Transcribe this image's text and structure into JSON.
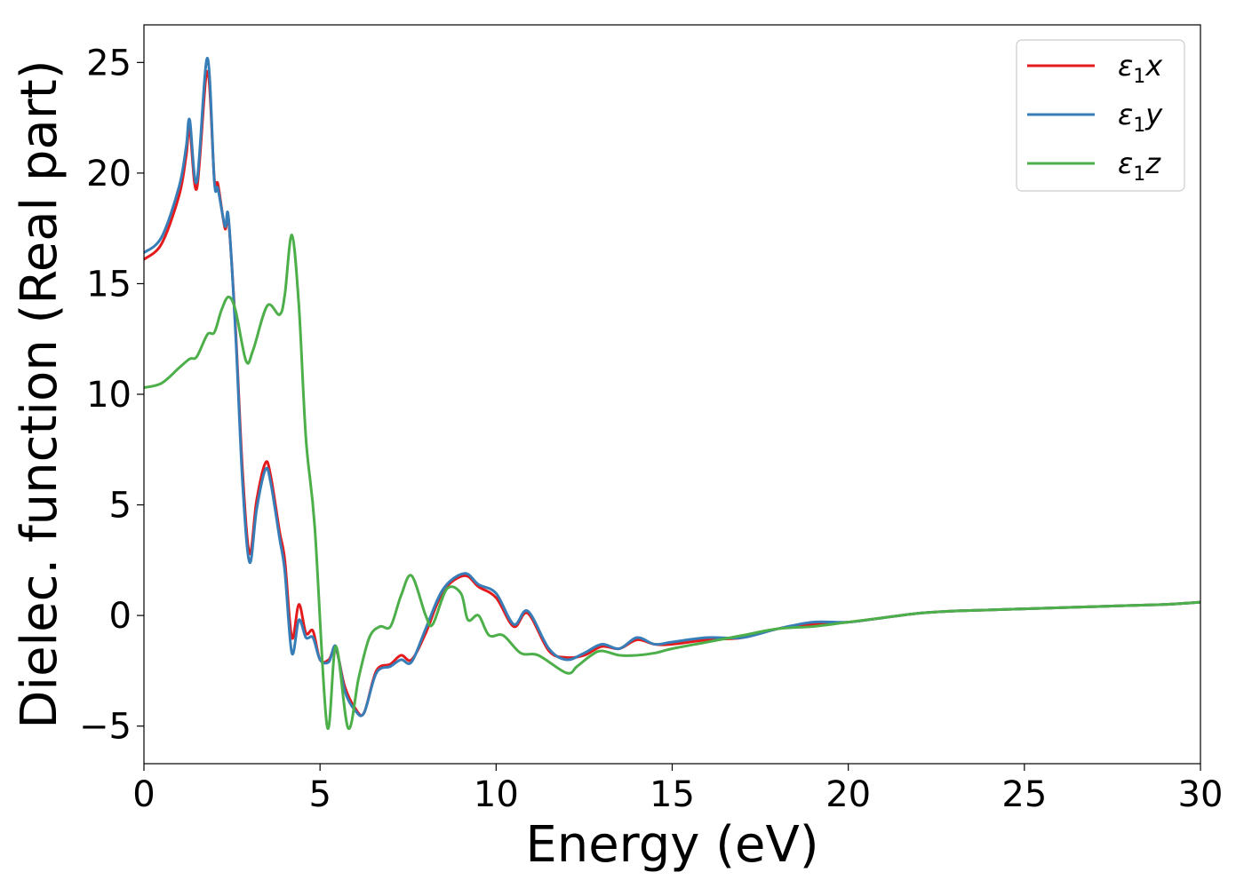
{
  "chart_data": {
    "type": "line",
    "title": "",
    "xlabel": "Energy (eV)",
    "ylabel": "Dielec. function (Real part)",
    "xlim": [
      0,
      30
    ],
    "ylim": [
      -6.7,
      26.7
    ],
    "xticks": [
      0,
      5,
      10,
      15,
      20,
      25,
      30
    ],
    "xtick_labels": [
      "0",
      "5",
      "10",
      "15",
      "20",
      "25",
      "30"
    ],
    "yticks": [
      -5,
      0,
      5,
      10,
      15,
      20,
      25
    ],
    "ytick_labels": [
      "−5",
      "0",
      "5",
      "10",
      "15",
      "20",
      "25"
    ],
    "grid": false,
    "legend_position": "top-right",
    "series": [
      {
        "name": "ε1x",
        "legend_symbol": "ε",
        "legend_sub": "1",
        "legend_var": "x",
        "color": "#e41a1c",
        "x": [
          0,
          0.5,
          1.0,
          1.2,
          1.3,
          1.5,
          1.8,
          2.0,
          2.1,
          2.3,
          2.4,
          2.6,
          2.8,
          3.0,
          3.2,
          3.45,
          3.6,
          3.85,
          4.0,
          4.2,
          4.4,
          4.6,
          4.8,
          5.0,
          5.25,
          5.45,
          5.7,
          6.0,
          6.25,
          6.6,
          7.0,
          7.3,
          7.6,
          8.0,
          8.5,
          9.1,
          9.5,
          10.0,
          10.5,
          10.9,
          11.5,
          12.0,
          12.5,
          13.0,
          13.5,
          14.0,
          14.5,
          15.0,
          16.0,
          17.0,
          18.0,
          19.0,
          20.0,
          21.0,
          22.0,
          23.0,
          24.0,
          25.0,
          26.0,
          27.0,
          28.0,
          29.0,
          30.0
        ],
        "y": [
          16.1,
          16.8,
          19.0,
          20.8,
          22.0,
          19.3,
          24.6,
          19.7,
          19.5,
          17.5,
          17.9,
          13.0,
          6.5,
          2.8,
          5.2,
          6.9,
          6.3,
          3.8,
          2.5,
          -1.0,
          0.5,
          -0.8,
          -0.7,
          -2.0,
          -2.0,
          -1.5,
          -3.2,
          -4.2,
          -4.4,
          -2.5,
          -2.2,
          -1.8,
          -2.0,
          -0.8,
          1.1,
          1.8,
          1.3,
          0.8,
          -0.5,
          0.1,
          -1.6,
          -1.9,
          -1.8,
          -1.4,
          -1.5,
          -1.1,
          -1.3,
          -1.3,
          -1.1,
          -1.0,
          -0.6,
          -0.4,
          -0.3,
          -0.1,
          0.1,
          0.2,
          0.25,
          0.3,
          0.35,
          0.4,
          0.45,
          0.5,
          0.6
        ]
      },
      {
        "name": "ε1y",
        "legend_symbol": "ε",
        "legend_sub": "1",
        "legend_var": "y",
        "color": "#377eb8",
        "x": [
          0,
          0.5,
          1.0,
          1.2,
          1.3,
          1.5,
          1.8,
          2.0,
          2.1,
          2.3,
          2.4,
          2.6,
          2.8,
          3.0,
          3.2,
          3.45,
          3.6,
          3.85,
          4.0,
          4.2,
          4.4,
          4.6,
          4.8,
          5.0,
          5.25,
          5.45,
          5.7,
          6.0,
          6.25,
          6.6,
          7.0,
          7.3,
          7.6,
          8.0,
          8.5,
          9.1,
          9.5,
          10.0,
          10.5,
          10.9,
          11.5,
          12.0,
          12.5,
          13.0,
          13.5,
          14.0,
          14.5,
          15.0,
          16.0,
          17.0,
          18.0,
          19.0,
          20.0,
          21.0,
          22.0,
          23.0,
          24.0,
          25.0,
          26.0,
          27.0,
          28.0,
          29.0,
          30.0
        ],
        "y": [
          16.4,
          17.1,
          19.4,
          21.2,
          22.4,
          19.6,
          25.2,
          19.6,
          19.3,
          17.6,
          18.0,
          12.8,
          6.0,
          2.4,
          4.8,
          6.6,
          6.0,
          3.5,
          2.0,
          -1.7,
          -0.2,
          -1.0,
          -1.0,
          -2.0,
          -2.1,
          -1.4,
          -3.4,
          -4.3,
          -4.4,
          -2.6,
          -2.3,
          -2.0,
          -2.1,
          -0.6,
          1.2,
          1.9,
          1.4,
          1.0,
          -0.4,
          0.2,
          -1.5,
          -2.0,
          -1.7,
          -1.3,
          -1.5,
          -1.0,
          -1.3,
          -1.2,
          -1.0,
          -1.0,
          -0.6,
          -0.3,
          -0.3,
          -0.1,
          0.1,
          0.2,
          0.25,
          0.3,
          0.35,
          0.4,
          0.45,
          0.5,
          0.6
        ]
      },
      {
        "name": "ε1z",
        "legend_symbol": "ε",
        "legend_sub": "1",
        "legend_var": "z",
        "color": "#4daf4a",
        "x": [
          0,
          0.5,
          1.0,
          1.3,
          1.5,
          1.8,
          2.0,
          2.2,
          2.4,
          2.6,
          2.9,
          3.1,
          3.5,
          3.85,
          4.0,
          4.2,
          4.4,
          4.6,
          4.85,
          5.2,
          5.45,
          5.8,
          6.1,
          6.4,
          6.7,
          7.0,
          7.3,
          7.6,
          8.0,
          8.2,
          8.6,
          9.0,
          9.2,
          9.5,
          9.8,
          10.2,
          10.7,
          11.2,
          12.0,
          12.3,
          12.7,
          13.0,
          13.5,
          14.0,
          14.5,
          15.0,
          16.0,
          17.0,
          18.0,
          19.0,
          20.0,
          21.0,
          22.0,
          23.0,
          24.0,
          25.0,
          26.0,
          27.0,
          28.0,
          29.0,
          30.0
        ],
        "y": [
          10.3,
          10.5,
          11.2,
          11.6,
          11.7,
          12.7,
          12.8,
          13.8,
          14.4,
          13.8,
          11.5,
          12.0,
          14.0,
          13.6,
          14.5,
          17.2,
          14.0,
          8.0,
          4.0,
          -5.0,
          -1.4,
          -5.1,
          -2.8,
          -1.0,
          -0.5,
          -0.5,
          0.9,
          1.8,
          0.0,
          -0.4,
          1.2,
          1.0,
          -0.2,
          0.0,
          -0.9,
          -0.9,
          -1.7,
          -1.8,
          -2.6,
          -2.3,
          -1.8,
          -1.6,
          -1.8,
          -1.8,
          -1.7,
          -1.5,
          -1.2,
          -0.9,
          -0.6,
          -0.5,
          -0.3,
          -0.1,
          0.1,
          0.2,
          0.25,
          0.3,
          0.35,
          0.4,
          0.45,
          0.5,
          0.6
        ]
      }
    ]
  }
}
